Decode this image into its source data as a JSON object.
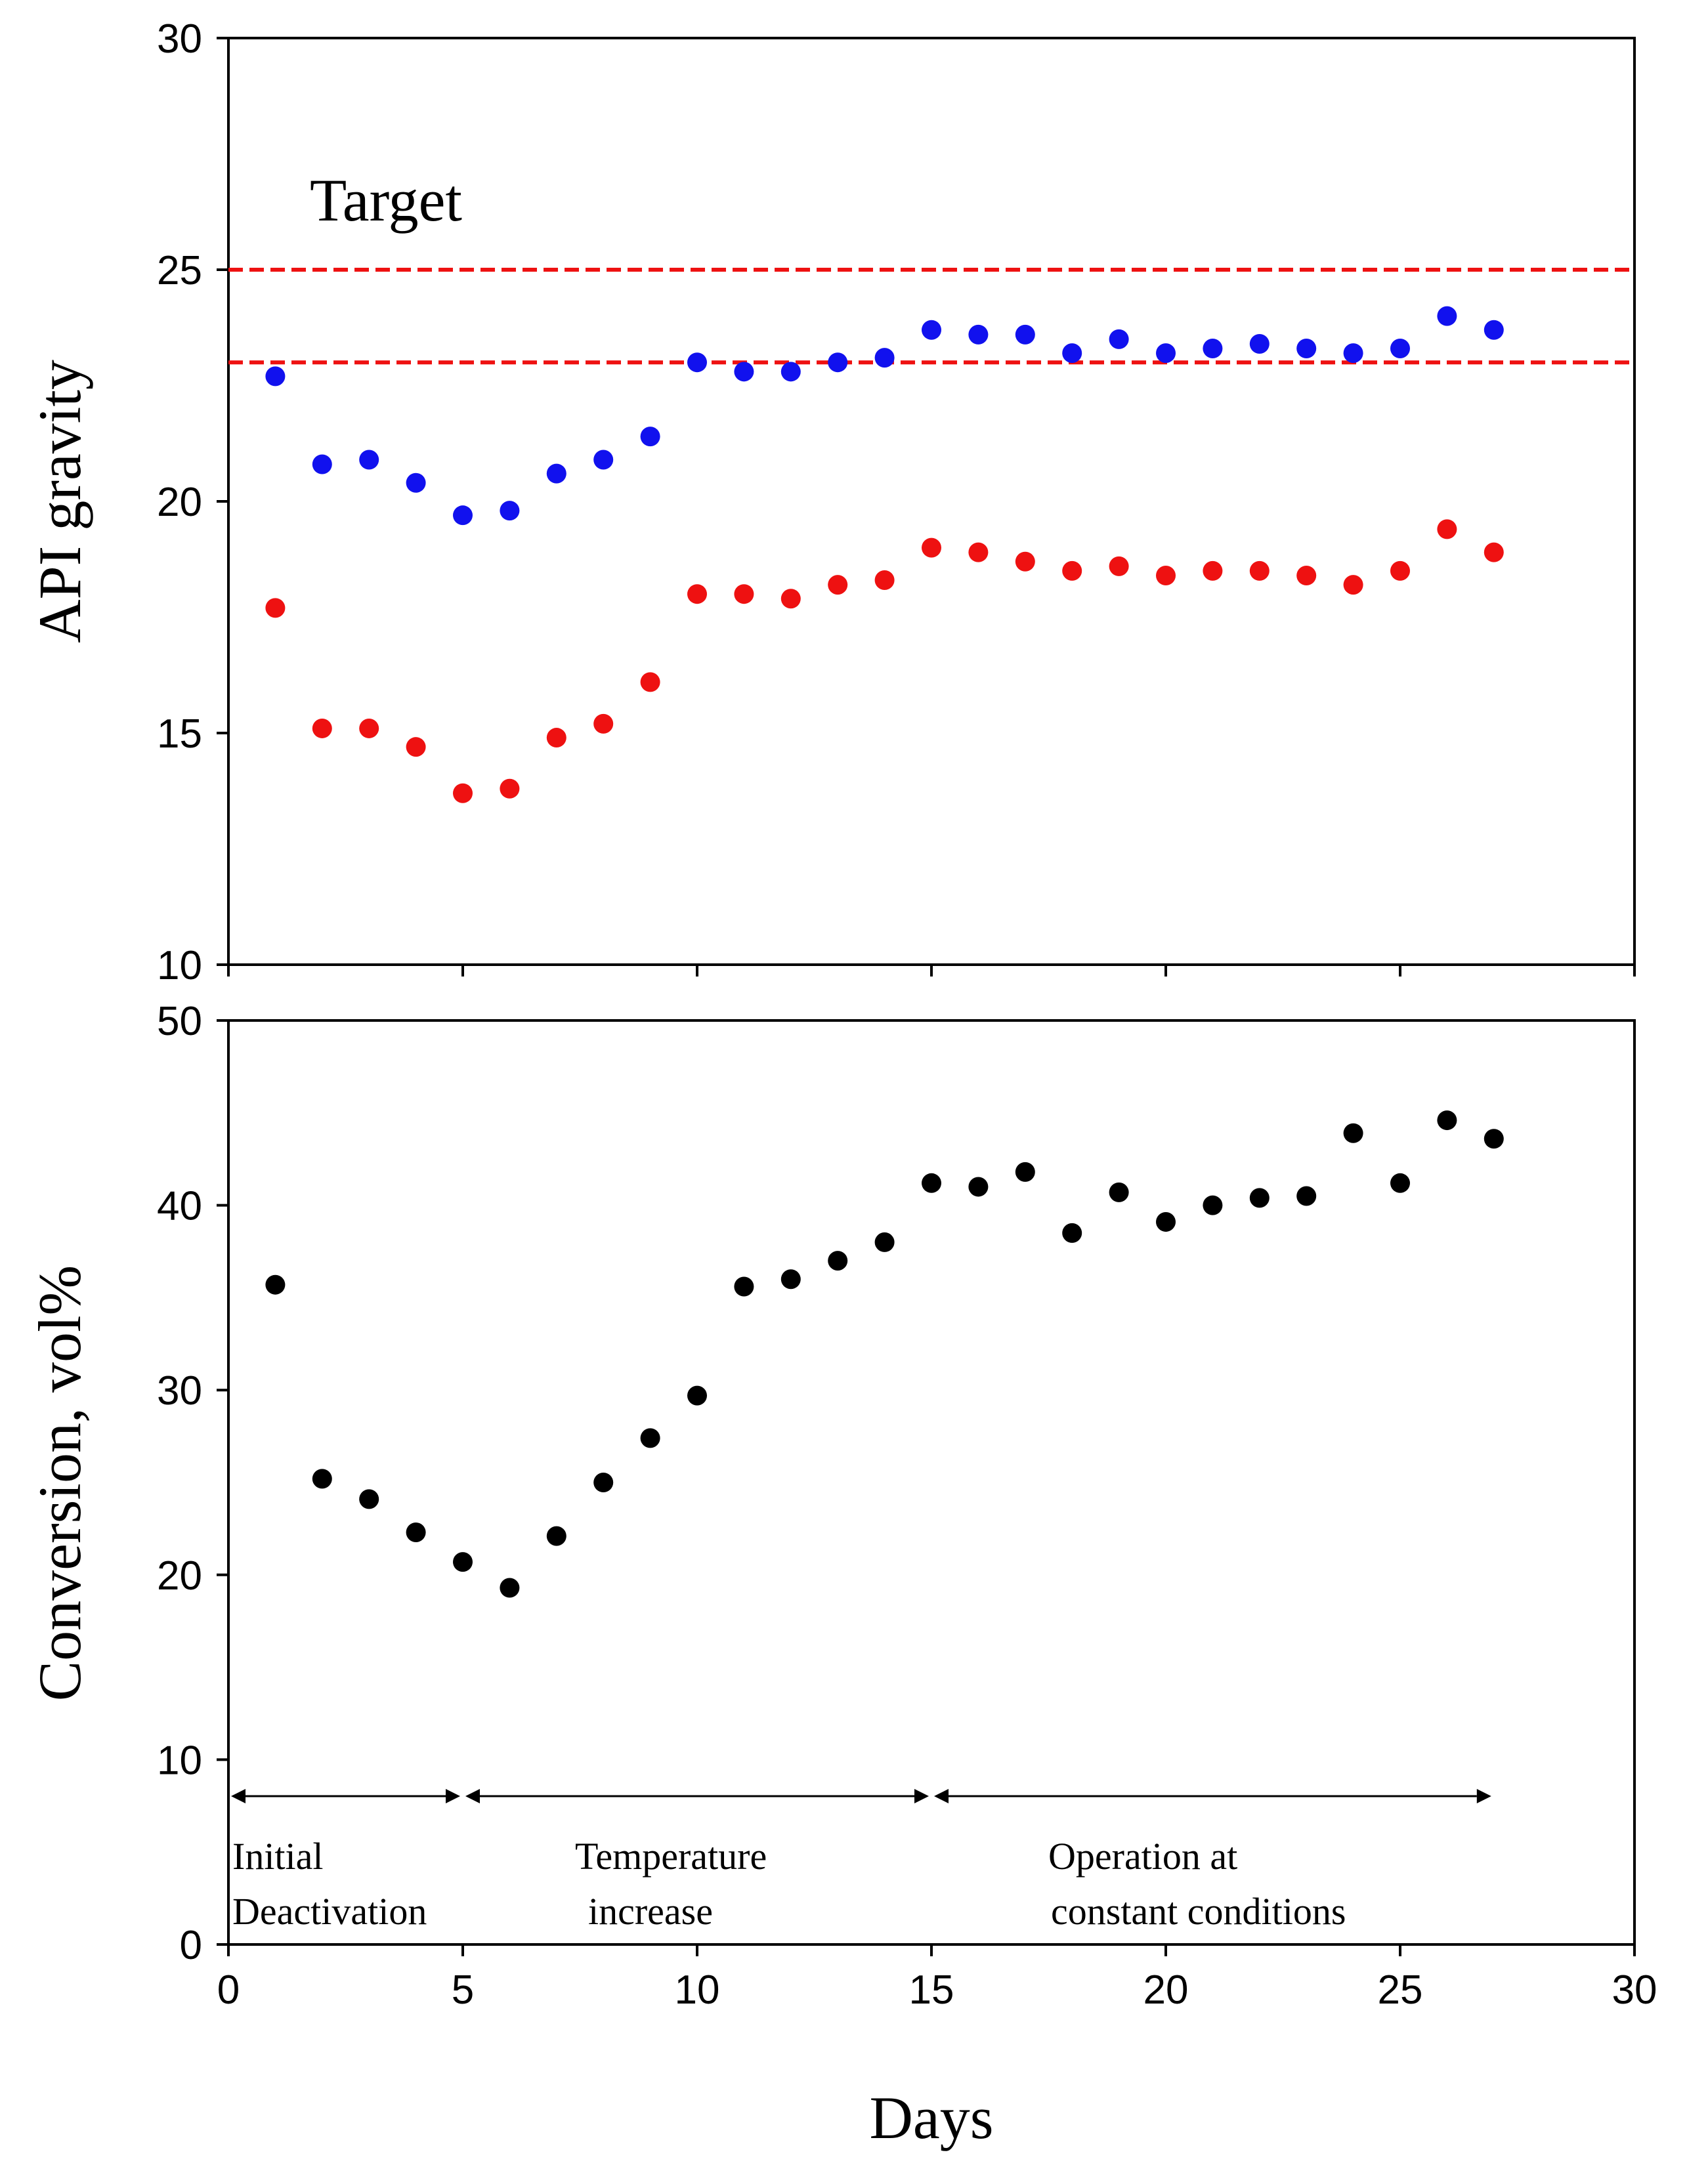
{
  "chart_data": [
    {
      "type": "scatter",
      "panel": "top",
      "title": "",
      "xlabel": "",
      "ylabel": "API gravity",
      "xlim": [
        0,
        30
      ],
      "ylim": [
        10,
        30
      ],
      "yticks": [
        10,
        15,
        20,
        25,
        30
      ],
      "grid": false,
      "annotation": "Target",
      "reference_lines": [
        {
          "y": 25,
          "color": "#ee1111",
          "style": "dashed"
        },
        {
          "y": 23,
          "color": "#ee1111",
          "style": "dashed"
        }
      ],
      "series": [
        {
          "name": "blue",
          "color": "#1111ee",
          "x": [
            1,
            2,
            3,
            4,
            5,
            6,
            7,
            8,
            9,
            10,
            11,
            12,
            13,
            14,
            15,
            16,
            17,
            18,
            19,
            20,
            21,
            22,
            23,
            24,
            25,
            26,
            27
          ],
          "y": [
            22.7,
            20.8,
            20.9,
            20.4,
            19.7,
            19.8,
            20.6,
            20.9,
            21.4,
            23.0,
            22.8,
            22.8,
            23.0,
            23.1,
            23.7,
            23.6,
            23.6,
            23.2,
            23.5,
            23.2,
            23.3,
            23.4,
            23.3,
            23.2,
            23.3,
            24.0,
            23.7
          ]
        },
        {
          "name": "red",
          "color": "#ee1111",
          "x": [
            1,
            2,
            3,
            4,
            5,
            6,
            7,
            8,
            9,
            10,
            11,
            12,
            13,
            14,
            15,
            16,
            17,
            18,
            19,
            20,
            21,
            22,
            23,
            24,
            25,
            26,
            27
          ],
          "y": [
            17.7,
            15.1,
            15.1,
            14.7,
            13.7,
            13.8,
            14.9,
            15.2,
            16.1,
            18.0,
            18.0,
            17.9,
            18.2,
            18.3,
            19.0,
            18.9,
            18.7,
            18.5,
            18.6,
            18.4,
            18.5,
            18.5,
            18.4,
            18.2,
            18.5,
            19.4,
            18.9
          ]
        }
      ]
    },
    {
      "type": "scatter",
      "panel": "bottom",
      "title": "",
      "xlabel": "Days",
      "ylabel": "Conversion, vol%",
      "xlim": [
        0,
        30
      ],
      "ylim": [
        0,
        50
      ],
      "xticks": [
        0,
        5,
        10,
        15,
        20,
        25,
        30
      ],
      "yticks": [
        0,
        10,
        20,
        30,
        40,
        50
      ],
      "grid": false,
      "series": [
        {
          "name": "conversion",
          "color": "#000000",
          "x": [
            1,
            2,
            3,
            4,
            5,
            6,
            7,
            8,
            9,
            10,
            11,
            12,
            13,
            14,
            15,
            16,
            17,
            18,
            19,
            20,
            21,
            22,
            23,
            24,
            25,
            26,
            27
          ],
          "y": [
            35.7,
            25.2,
            24.1,
            22.3,
            20.7,
            19.3,
            22.1,
            25.0,
            27.4,
            29.7,
            35.6,
            36.0,
            37.0,
            38.0,
            41.2,
            41.0,
            41.8,
            38.5,
            40.7,
            39.1,
            40.0,
            40.4,
            40.5,
            43.9,
            41.2,
            44.6,
            43.6
          ]
        }
      ],
      "phases": [
        {
          "from": 0,
          "to": 5,
          "label_lines": [
            "Initial",
            "Deactivation"
          ]
        },
        {
          "from": 5,
          "to": 15,
          "label_lines": [
            "Temperature",
            "increase"
          ]
        },
        {
          "from": 15,
          "to": 27,
          "label_lines": [
            "Operation at",
            "constant conditions"
          ]
        }
      ]
    }
  ]
}
